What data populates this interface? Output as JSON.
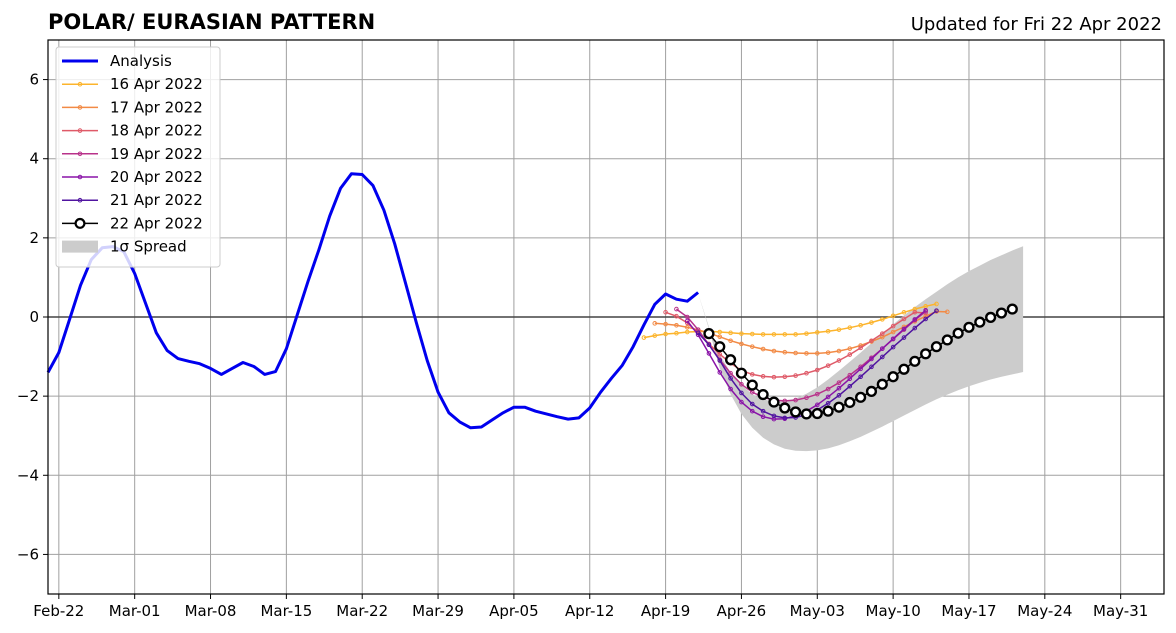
{
  "chart_data": {
    "type": "line",
    "title": "POLAR/ EURASIAN  PATTERN",
    "subtitle": "Updated for Fri 22 Apr 2022",
    "xlabel": "",
    "ylabel": "",
    "ylim": [
      -7,
      7
    ],
    "xlim": [
      "2022-02-21",
      "2022-06-04"
    ],
    "x_ticks": [
      {
        "date": "2022-02-22",
        "label": "Feb-22"
      },
      {
        "date": "2022-03-01",
        "label": "Mar-01"
      },
      {
        "date": "2022-03-08",
        "label": "Mar-08"
      },
      {
        "date": "2022-03-15",
        "label": "Mar-15"
      },
      {
        "date": "2022-03-22",
        "label": "Mar-22"
      },
      {
        "date": "2022-03-29",
        "label": "Mar-29"
      },
      {
        "date": "2022-04-05",
        "label": "Apr-05"
      },
      {
        "date": "2022-04-12",
        "label": "Apr-12"
      },
      {
        "date": "2022-04-19",
        "label": "Apr-19"
      },
      {
        "date": "2022-04-26",
        "label": "Apr-26"
      },
      {
        "date": "2022-05-03",
        "label": "May-03"
      },
      {
        "date": "2022-05-10",
        "label": "May-10"
      },
      {
        "date": "2022-05-17",
        "label": "May-17"
      },
      {
        "date": "2022-05-24",
        "label": "May-24"
      },
      {
        "date": "2022-05-31",
        "label": "May-31"
      }
    ],
    "y_ticks": [
      {
        "value": 6,
        "label": "6"
      },
      {
        "value": 4,
        "label": "4"
      },
      {
        "value": 2,
        "label": "2"
      },
      {
        "value": 0,
        "label": "0"
      },
      {
        "value": -2,
        "label": "−2"
      },
      {
        "value": -4,
        "label": "−4"
      },
      {
        "value": -6,
        "label": "−6"
      }
    ],
    "grid": true,
    "legend_position": "top-left",
    "zero_line": 0,
    "series": [
      {
        "name": "Analysis",
        "color": "#0000ee",
        "marker": "none",
        "width": 3,
        "start": "2022-02-21",
        "y": [
          -1.4,
          -0.9,
          -0.05,
          0.8,
          1.45,
          1.75,
          1.78,
          1.65,
          1.1,
          0.35,
          -0.4,
          -0.85,
          -1.05,
          -1.12,
          -1.18,
          -1.3,
          -1.45,
          -1.3,
          -1.15,
          -1.25,
          -1.45,
          -1.38,
          -0.8,
          0.05,
          0.9,
          1.7,
          2.55,
          3.25,
          3.62,
          3.6,
          3.32,
          2.7,
          1.85,
          0.85,
          -0.15,
          -1.1,
          -1.9,
          -2.42,
          -2.65,
          -2.8,
          -2.78,
          -2.6,
          -2.42,
          -2.28,
          -2.28,
          -2.38,
          -2.45,
          -2.52,
          -2.58,
          -2.55,
          -2.3,
          -1.9,
          -1.55,
          -1.22,
          -0.75,
          -0.2,
          0.32,
          0.58,
          0.45,
          0.4,
          0.62
        ]
      },
      {
        "name": "16 Apr 2022",
        "color": "#fcb42c",
        "marker": "small",
        "width": 1.5,
        "start": "2022-04-17",
        "y": [
          -0.52,
          -0.47,
          -0.43,
          -0.41,
          -0.38,
          -0.37,
          -0.36,
          -0.38,
          -0.4,
          -0.42,
          -0.43,
          -0.44,
          -0.44,
          -0.44,
          -0.44,
          -0.42,
          -0.39,
          -0.36,
          -0.32,
          -0.27,
          -0.21,
          -0.14,
          -0.06,
          0.03,
          0.12,
          0.2,
          0.27,
          0.33
        ]
      },
      {
        "name": "17 Apr 2022",
        "color": "#f28a45",
        "marker": "small",
        "width": 1.5,
        "start": "2022-04-18",
        "y": [
          -0.16,
          -0.18,
          -0.21,
          -0.26,
          -0.32,
          -0.41,
          -0.5,
          -0.6,
          -0.68,
          -0.75,
          -0.81,
          -0.86,
          -0.89,
          -0.91,
          -0.92,
          -0.92,
          -0.9,
          -0.86,
          -0.8,
          -0.72,
          -0.62,
          -0.51,
          -0.38,
          -0.25,
          -0.11,
          0.02,
          0.14,
          0.13
        ]
      },
      {
        "name": "18 Apr 2022",
        "color": "#df5a68",
        "marker": "small",
        "width": 1.5,
        "start": "2022-04-19",
        "y": [
          0.12,
          0.02,
          -0.15,
          -0.4,
          -0.68,
          -0.94,
          -1.17,
          -1.35,
          -1.45,
          -1.5,
          -1.52,
          -1.51,
          -1.48,
          -1.42,
          -1.34,
          -1.23,
          -1.1,
          -0.95,
          -0.78,
          -0.6,
          -0.42,
          -0.23,
          -0.05,
          0.12,
          0.1
        ]
      },
      {
        "name": "19 Apr 2022",
        "color": "#b8328a",
        "marker": "small",
        "width": 1.5,
        "start": "2022-04-20",
        "y": [
          0.2,
          0.0,
          -0.32,
          -0.7,
          -1.08,
          -1.42,
          -1.7,
          -1.9,
          -2.03,
          -2.1,
          -2.12,
          -2.1,
          -2.04,
          -1.95,
          -1.82,
          -1.66,
          -1.47,
          -1.26,
          -1.03,
          -0.8,
          -0.56,
          -0.32,
          -0.08,
          0.14
        ]
      },
      {
        "name": "20 Apr 2022",
        "color": "#8a14a8",
        "marker": "small",
        "width": 1.5,
        "start": "2022-04-21",
        "y": [
          -0.1,
          -0.45,
          -0.92,
          -1.4,
          -1.82,
          -2.15,
          -2.38,
          -2.52,
          -2.58,
          -2.57,
          -2.5,
          -2.38,
          -2.22,
          -2.02,
          -1.8,
          -1.56,
          -1.31,
          -1.06,
          -0.8,
          -0.55,
          -0.3,
          -0.06,
          0.17
        ]
      },
      {
        "name": "21 Apr 2022",
        "color": "#5014a0",
        "marker": "small",
        "width": 1.5,
        "start": "2022-04-22",
        "y": [
          -0.4,
          -0.7,
          -1.1,
          -1.55,
          -1.92,
          -2.2,
          -2.38,
          -2.5,
          -2.55,
          -2.54,
          -2.47,
          -2.35,
          -2.18,
          -1.98,
          -1.75,
          -1.51,
          -1.26,
          -1.01,
          -0.76,
          -0.52,
          -0.28,
          -0.05,
          0.16
        ]
      },
      {
        "name": "22 Apr 2022",
        "color": "#000000",
        "marker": "open-circle",
        "width": 1.5,
        "start": "2022-04-23",
        "y": [
          -0.42,
          -0.75,
          -1.08,
          -1.42,
          -1.72,
          -1.96,
          -2.15,
          -2.3,
          -2.4,
          -2.45,
          -2.44,
          -2.38,
          -2.28,
          -2.16,
          -2.03,
          -1.88,
          -1.7,
          -1.51,
          -1.32,
          -1.12,
          -0.93,
          -0.75,
          -0.58,
          -0.41,
          -0.26,
          -0.13,
          -0.01,
          0.1,
          0.2
        ]
      }
    ],
    "spread": {
      "name": "1σ Spread",
      "color": "#cccccc",
      "start": "2022-04-22",
      "upper": [
        0.6,
        -0.25,
        -0.95,
        -1.4,
        -1.72,
        -1.95,
        -2.08,
        -2.14,
        -2.13,
        -2.06,
        -1.94,
        -1.78,
        -1.58,
        -1.36,
        -1.13,
        -0.9,
        -0.66,
        -0.42,
        -0.19,
        0.04,
        0.25,
        0.45,
        0.64,
        0.83,
        1.0,
        1.16,
        1.3,
        1.44,
        1.56,
        1.68,
        1.79
      ],
      "lower": [
        0.6,
        -0.3,
        -1.3,
        -1.95,
        -2.45,
        -2.8,
        -3.05,
        -3.22,
        -3.33,
        -3.38,
        -3.39,
        -3.37,
        -3.32,
        -3.24,
        -3.14,
        -3.03,
        -2.9,
        -2.77,
        -2.63,
        -2.49,
        -2.35,
        -2.21,
        -2.08,
        -1.96,
        -1.85,
        -1.75,
        -1.66,
        -1.58,
        -1.51,
        -1.45,
        -1.39
      ]
    }
  }
}
